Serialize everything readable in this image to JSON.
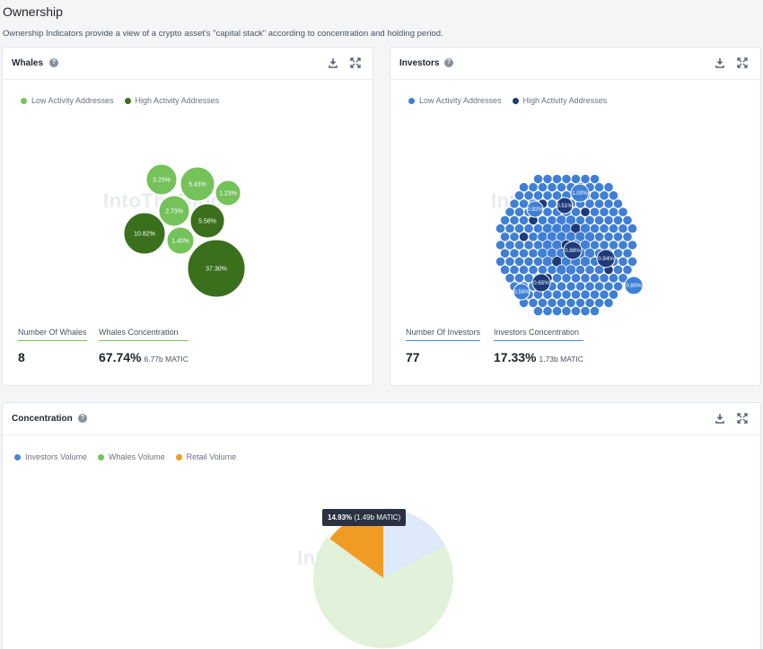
{
  "page": {
    "title": "Ownership",
    "subtitle": "Ownership Indicators provide a view of a crypto asset's \"capital stack\" according to concentration and holding period."
  },
  "whales": {
    "title": "Whales",
    "legend": [
      "Low Activity Addresses",
      "High Activity Addresses"
    ],
    "colors": {
      "low": "#74c25a",
      "high": "#3a6f1c"
    },
    "bubbles": [
      {
        "label": "3.25%",
        "type": "low"
      },
      {
        "label": "5.43%",
        "type": "low"
      },
      {
        "label": "1.23%",
        "type": "low"
      },
      {
        "label": "2.73%",
        "type": "low"
      },
      {
        "label": "5.58%",
        "type": "high"
      },
      {
        "label": "10.82%",
        "type": "high"
      },
      {
        "label": "1.40%",
        "type": "low"
      },
      {
        "label": "37.30%",
        "type": "high"
      }
    ],
    "count_label": "Number Of Whales",
    "count_value": "8",
    "concentration_label": "Whales Concentration",
    "concentration_value": "67.74%",
    "concentration_sub": "6.77b MATIC"
  },
  "investors": {
    "title": "Investors",
    "legend": [
      "Low Activity Addresses",
      "High Activity Addresses"
    ],
    "colors": {
      "low": "#3f7fd6",
      "high": "#1d3a7a"
    },
    "bubble_labels": [
      "1.00%",
      "0.92%",
      "0.51%",
      "0.88%",
      "0.94%",
      "0.65%",
      "0.59%",
      "0.80%"
    ],
    "count_label": "Number Of Investors",
    "count_value": "77",
    "concentration_label": "Investors Concentration",
    "concentration_value": "17.33%",
    "concentration_sub": "1.73b MATIC"
  },
  "concentration": {
    "title": "Concentration",
    "legend": [
      {
        "label": "Investors Volume",
        "color": "#4a86d8"
      },
      {
        "label": "Whales Volume",
        "color": "#74c25a"
      },
      {
        "label": "Retail Volume",
        "color": "#f09c24"
      }
    ],
    "tooltip_value": "14.93%",
    "tooltip_sub": "(1.49b MATIC)",
    "chart_data": {
      "type": "pie",
      "slices": [
        {
          "name": "Investors Volume",
          "value": 17.33
        },
        {
          "name": "Whales Volume",
          "value": 67.74
        },
        {
          "name": "Retail Volume",
          "value": 14.93
        }
      ]
    }
  },
  "watermark": "IntoTheBlock"
}
